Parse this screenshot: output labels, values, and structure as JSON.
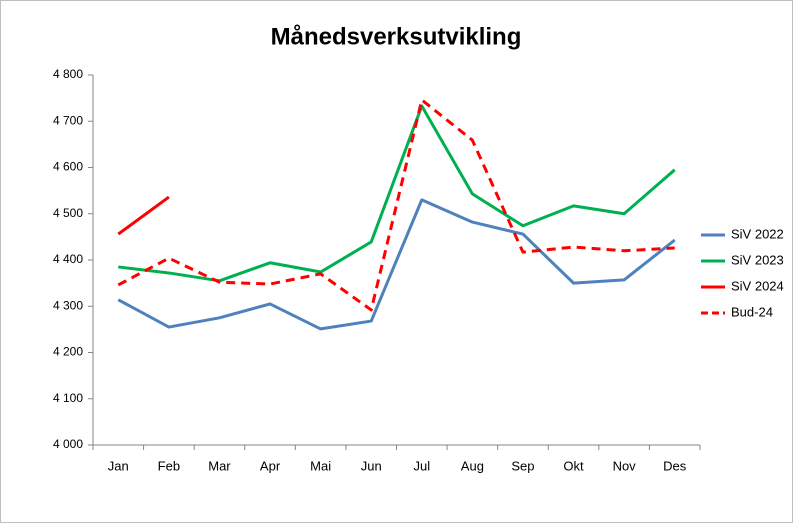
{
  "chart_data": {
    "type": "line",
    "title": "Månedsverksutvikling",
    "categories": [
      "Jan",
      "Feb",
      "Mar",
      "Apr",
      "Mai",
      "Jun",
      "Jul",
      "Aug",
      "Sep",
      "Okt",
      "Nov",
      "Des"
    ],
    "series": [
      {
        "name": "SiV 2022",
        "color": "#4f81bd",
        "dash": false,
        "values": [
          4314,
          4255,
          4275,
          4305,
          4251,
          4268,
          4530,
          4482,
          4456,
          4350,
          4357,
          4443
        ]
      },
      {
        "name": "SiV 2023",
        "color": "#00b050",
        "dash": false,
        "values": [
          4385,
          4372,
          4355,
          4394,
          4374,
          4439,
          4733,
          4543,
          4474,
          4517,
          4500,
          4595
        ]
      },
      {
        "name": "SiV 2024",
        "color": "#ff0000",
        "dash": false,
        "values": [
          4456,
          4536,
          null,
          null,
          null,
          null,
          null,
          null,
          null,
          null,
          null,
          null
        ]
      },
      {
        "name": "Bud-24",
        "color": "#ff0000",
        "dash": true,
        "values": [
          4346,
          4404,
          4352,
          4348,
          4370,
          4292,
          4746,
          4659,
          4417,
          4428,
          4420,
          4426
        ]
      }
    ],
    "ylim": [
      4000,
      4800
    ],
    "yticks": [
      {
        "value": 4000,
        "label": "4 000"
      },
      {
        "value": 4100,
        "label": "4 100"
      },
      {
        "value": 4200,
        "label": "4 200"
      },
      {
        "value": 4300,
        "label": "4 300"
      },
      {
        "value": 4400,
        "label": "4 400"
      },
      {
        "value": 4500,
        "label": "4 500"
      },
      {
        "value": 4600,
        "label": "4 600"
      },
      {
        "value": 4700,
        "label": "4 700"
      },
      {
        "value": 4800,
        "label": "4 800"
      }
    ],
    "grid": false,
    "legend": "right"
  }
}
